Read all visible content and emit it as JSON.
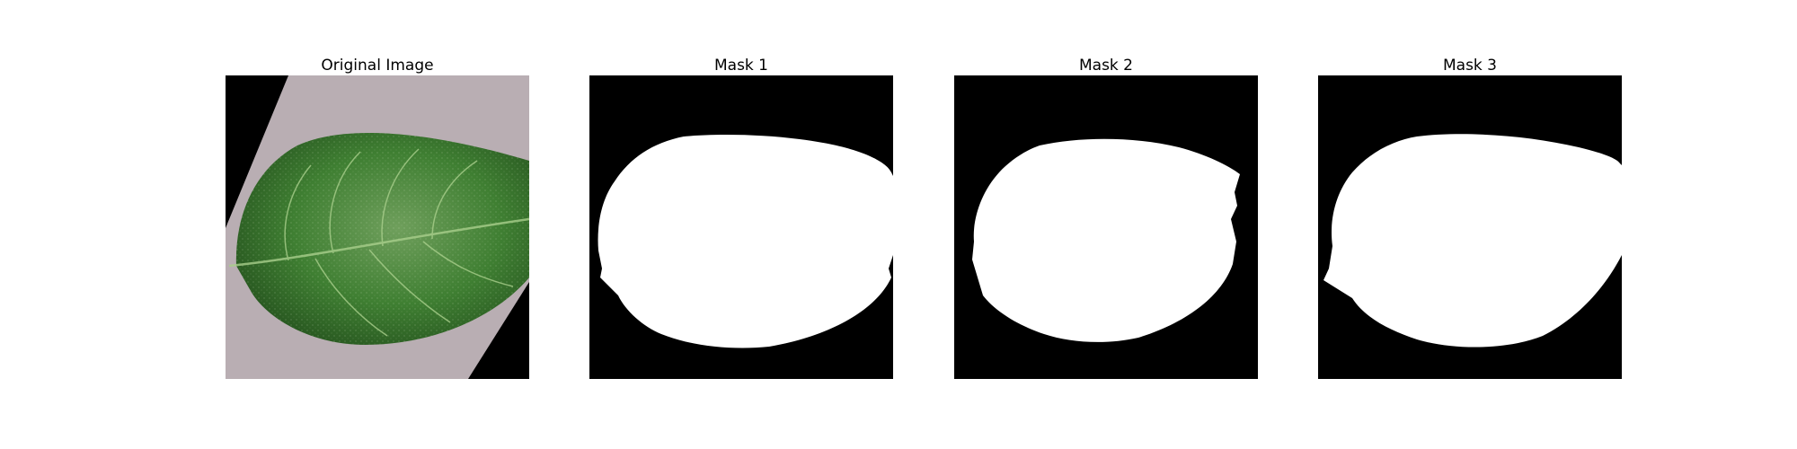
{
  "figure": {
    "panels": [
      {
        "title": "Original Image",
        "kind": "photo"
      },
      {
        "title": "Mask 1",
        "kind": "mask"
      },
      {
        "title": "Mask 2",
        "kind": "mask"
      },
      {
        "title": "Mask 3",
        "kind": "mask"
      }
    ]
  },
  "colors": {
    "background": "#000000",
    "mask_fill": "#ffffff",
    "paper": "#b9aeb3",
    "leaf_dark": "#2a5a22",
    "leaf_mid": "#3f7f32",
    "leaf_light": "#7fae68",
    "vein": "#a9cf8c"
  }
}
